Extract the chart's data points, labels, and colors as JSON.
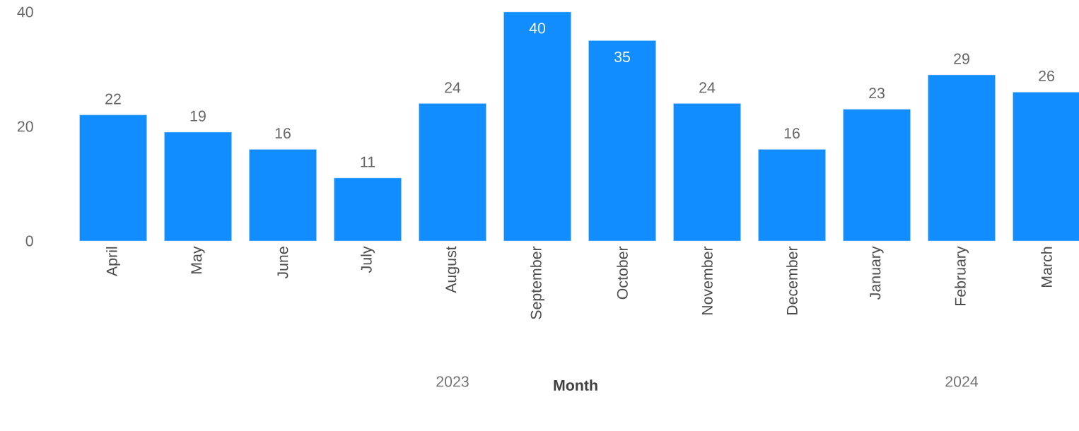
{
  "chart_data": {
    "type": "bar",
    "xlabel": "Month",
    "categories": [
      "April",
      "May",
      "June",
      "July",
      "August",
      "September",
      "October",
      "November",
      "December",
      "January",
      "February",
      "March"
    ],
    "values": [
      22,
      19,
      16,
      11,
      24,
      40,
      35,
      24,
      16,
      23,
      29,
      26
    ],
    "color": "#118dff",
    "ylim": [
      0,
      40
    ],
    "yticks": [
      0,
      20,
      40
    ],
    "grid": false,
    "data_labels": true,
    "annotations": [
      "2023",
      "2024"
    ]
  }
}
